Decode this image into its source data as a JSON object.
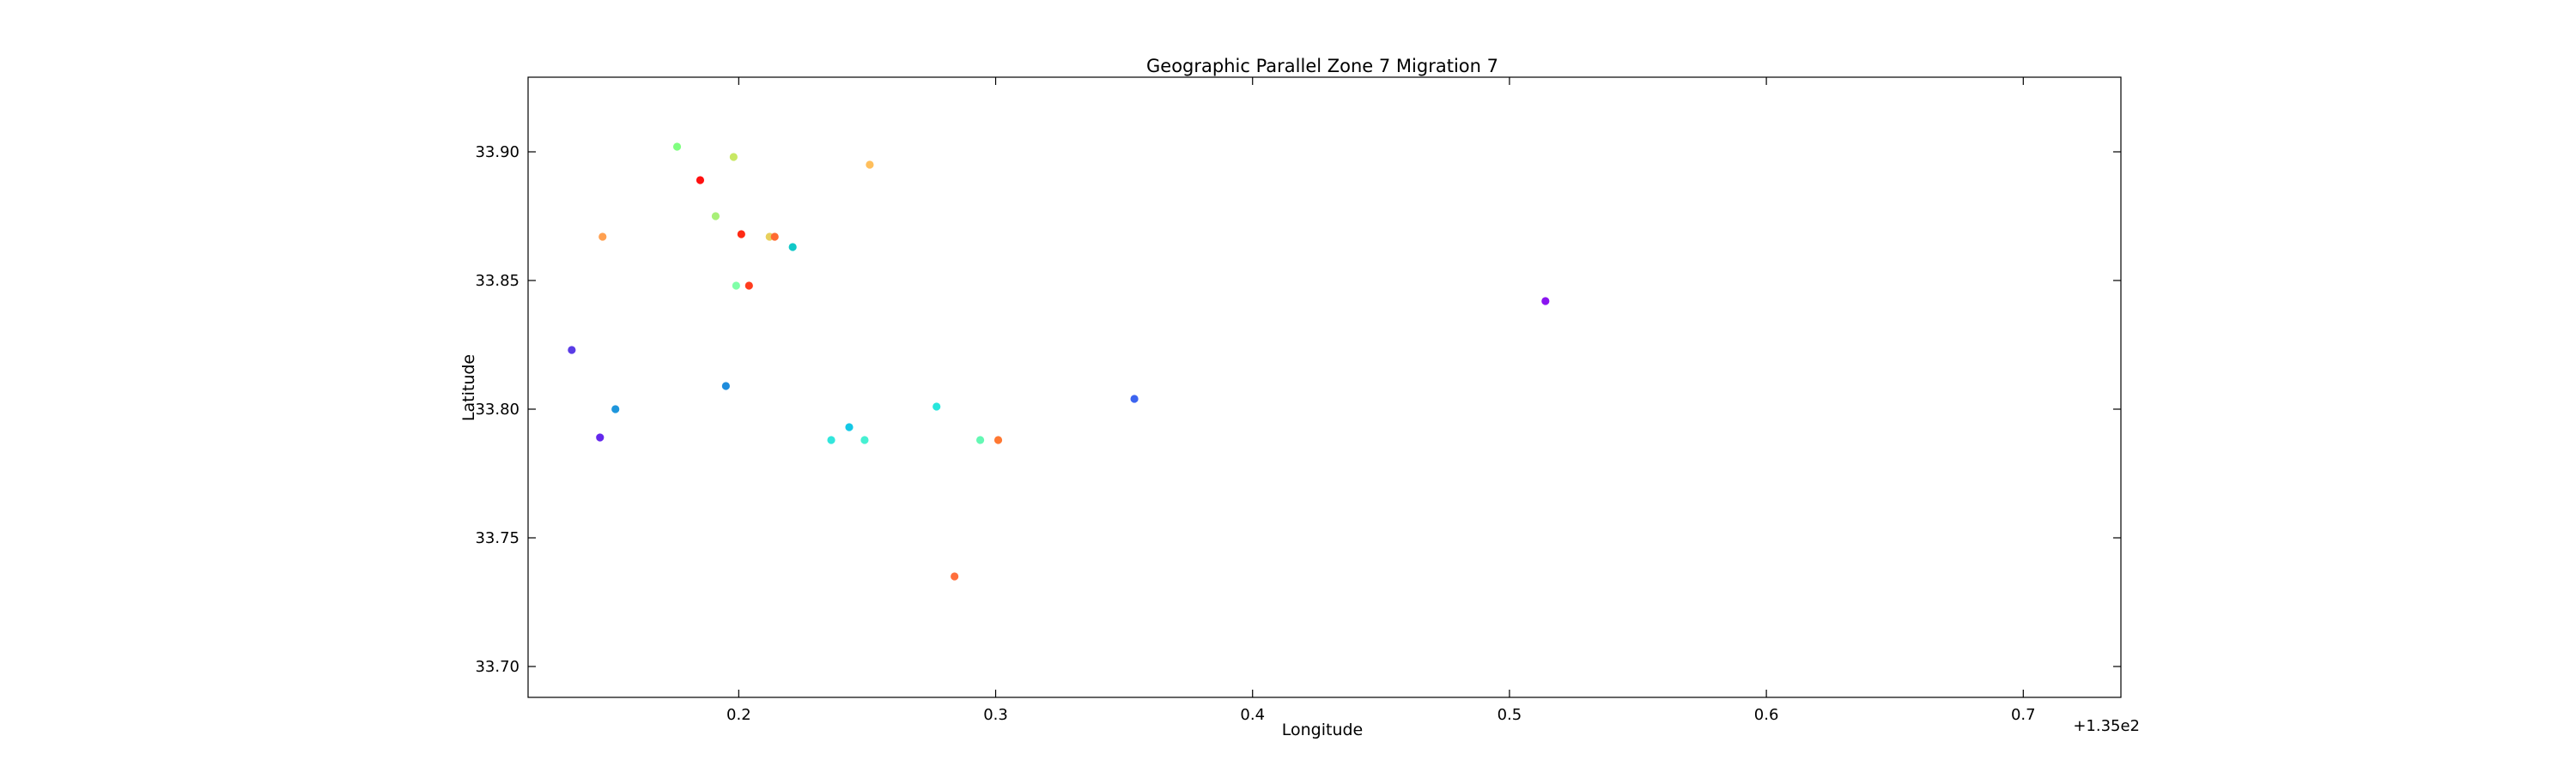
{
  "chart_data": {
    "type": "scatter",
    "title": "Geographic Parallel Zone 7 Migration 7",
    "xlabel": "Longitude",
    "ylabel": "Latitude",
    "x_offset_label": "+1.35e2",
    "xlim": [
      0.118,
      0.738
    ],
    "ylim": [
      33.688,
      33.929
    ],
    "x_ticks": [
      0.2,
      0.3,
      0.4,
      0.5,
      0.6,
      0.7
    ],
    "x_tick_labels": [
      "0.2",
      "0.3",
      "0.4",
      "0.5",
      "0.6",
      "0.7"
    ],
    "y_ticks": [
      33.7,
      33.75,
      33.8,
      33.85,
      33.9
    ],
    "y_tick_labels": [
      "33.70",
      "33.75",
      "33.80",
      "33.85",
      "33.90"
    ],
    "grid": false,
    "points": [
      {
        "x": 0.176,
        "y": 33.902,
        "color": "#80ff80"
      },
      {
        "x": 0.198,
        "y": 33.898,
        "color": "#c8e864"
      },
      {
        "x": 0.251,
        "y": 33.895,
        "color": "#ffbf5c"
      },
      {
        "x": 0.185,
        "y": 33.889,
        "color": "#ff1010"
      },
      {
        "x": 0.191,
        "y": 33.875,
        "color": "#a8f078"
      },
      {
        "x": 0.147,
        "y": 33.867,
        "color": "#ffa050"
      },
      {
        "x": 0.201,
        "y": 33.868,
        "color": "#ff2a14"
      },
      {
        "x": 0.212,
        "y": 33.867,
        "color": "#e8d05c"
      },
      {
        "x": 0.214,
        "y": 33.867,
        "color": "#ff6a30"
      },
      {
        "x": 0.221,
        "y": 33.863,
        "color": "#10c8c8"
      },
      {
        "x": 0.199,
        "y": 33.848,
        "color": "#80ffa8"
      },
      {
        "x": 0.204,
        "y": 33.848,
        "color": "#ff3c1e"
      },
      {
        "x": 0.514,
        "y": 33.842,
        "color": "#8a14f0"
      },
      {
        "x": 0.135,
        "y": 33.823,
        "color": "#5a3ce6"
      },
      {
        "x": 0.195,
        "y": 33.809,
        "color": "#1e8cdc"
      },
      {
        "x": 0.152,
        "y": 33.8,
        "color": "#1e96dc"
      },
      {
        "x": 0.277,
        "y": 33.801,
        "color": "#28e6dc"
      },
      {
        "x": 0.354,
        "y": 33.804,
        "color": "#3c64f0"
      },
      {
        "x": 0.146,
        "y": 33.789,
        "color": "#6428ec"
      },
      {
        "x": 0.243,
        "y": 33.793,
        "color": "#14c8e6"
      },
      {
        "x": 0.236,
        "y": 33.788,
        "color": "#32e6dc"
      },
      {
        "x": 0.249,
        "y": 33.788,
        "color": "#46f0d2"
      },
      {
        "x": 0.294,
        "y": 33.788,
        "color": "#64f8b4"
      },
      {
        "x": 0.301,
        "y": 33.788,
        "color": "#ff7832"
      },
      {
        "x": 0.284,
        "y": 33.735,
        "color": "#ff6e3c"
      }
    ]
  }
}
